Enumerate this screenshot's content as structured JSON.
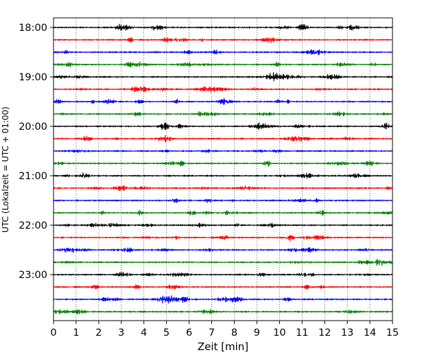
{
  "chart_data": {
    "type": "line",
    "title": "",
    "xlabel": "Zeit  [min]",
    "ylabel": "UTC (Lokalzeit = UTC + 01:00)",
    "xlim": [
      0,
      15
    ],
    "x_ticks": [
      "0",
      "1",
      "2",
      "3",
      "4",
      "5",
      "6",
      "7",
      "8",
      "9",
      "10",
      "11",
      "12",
      "13",
      "14",
      "15"
    ],
    "y_ticks": [
      "18:00",
      "19:00",
      "20:00",
      "21:00",
      "22:00",
      "23:00"
    ],
    "grid": "vertical dotted lines at each minute",
    "trace_interval_minutes": 15,
    "trace_start": "18:00",
    "trace_count": 24,
    "trace_colors": [
      "#000000",
      "#ff0000",
      "#0000ff",
      "#008000"
    ]
  }
}
